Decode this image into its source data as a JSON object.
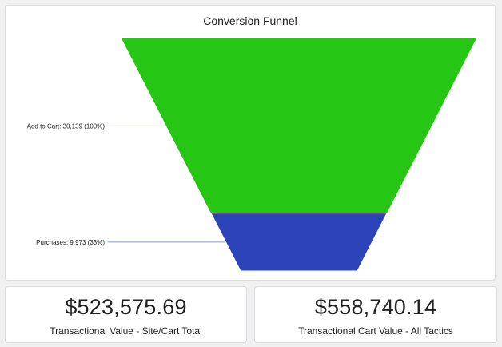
{
  "funnel": {
    "title": "Conversion Funnel"
  },
  "chart_data": {
    "type": "funnel",
    "title": "Conversion Funnel",
    "stages": [
      {
        "name": "Add to Cart",
        "value": 30139,
        "percent": 100,
        "label": "Add to Cart: 30,139 (100%)",
        "color": "#25c614",
        "line_color": "#9be29a"
      },
      {
        "name": "Purchases",
        "value": 9973,
        "percent": 33,
        "label": "Purchases: 9,973 (33%)",
        "color": "#2d43b9",
        "line_color": "#8c96d4"
      }
    ]
  },
  "kpis": [
    {
      "value": "$523,575.69",
      "label": "Transactional Value - Site/Cart Total"
    },
    {
      "value": "$558,740.14",
      "label": "Transactional Cart Value - All Tactics"
    }
  ]
}
